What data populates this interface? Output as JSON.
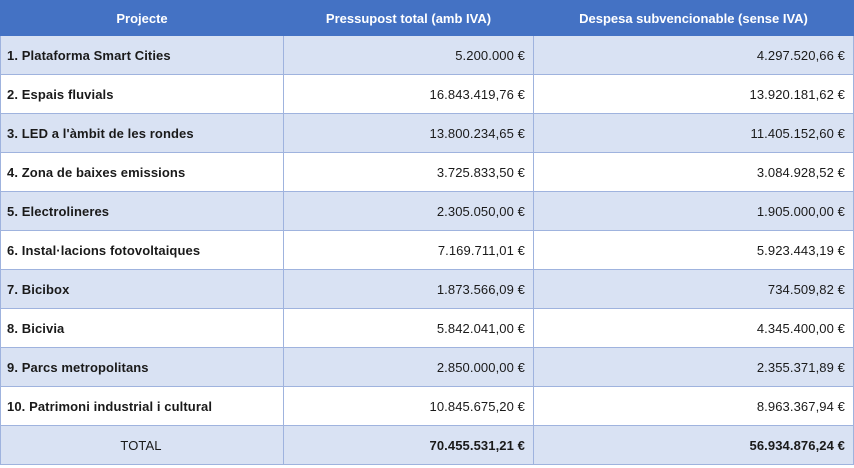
{
  "table": {
    "headers": [
      "Projecte",
      "Pressupost total (amb IVA)",
      "Despesa subvencionable (sense IVA)"
    ],
    "rows": [
      [
        "1. Plataforma Smart Cities",
        "5.200.000 €",
        "4.297.520,66 €"
      ],
      [
        "2. Espais fluvials",
        "16.843.419,76 €",
        "13.920.181,62 €"
      ],
      [
        "3. LED a l'àmbit de les rondes",
        "13.800.234,65 €",
        "11.405.152,60 €"
      ],
      [
        "4. Zona de baixes emissions",
        "3.725.833,50 €",
        "3.084.928,52 €"
      ],
      [
        "5. Electrolineres",
        "2.305.050,00 €",
        "1.905.000,00 €"
      ],
      [
        "6. Instal·lacions fotovoltaiques",
        "7.169.711,01 €",
        "5.923.443,19 €"
      ],
      [
        "7. Bicibox",
        "1.873.566,09 €",
        "734.509,82 €"
      ],
      [
        "8. Bicivia",
        "5.842.041,00 €",
        "4.345.400,00 €"
      ],
      [
        "9. Parcs metropolitans",
        "2.850.000,00 €",
        "2.355.371,89 €"
      ],
      [
        "10. Patrimoni industrial i cultural",
        "10.845.675,20 €",
        "8.963.367,94 €"
      ]
    ],
    "total": [
      "TOTAL",
      "70.455.531,21 €",
      "56.934.876,24 €"
    ]
  },
  "colors": {
    "header_bg": "#4472c4",
    "band_bg": "#d9e2f3",
    "border": "#9fb3de"
  }
}
